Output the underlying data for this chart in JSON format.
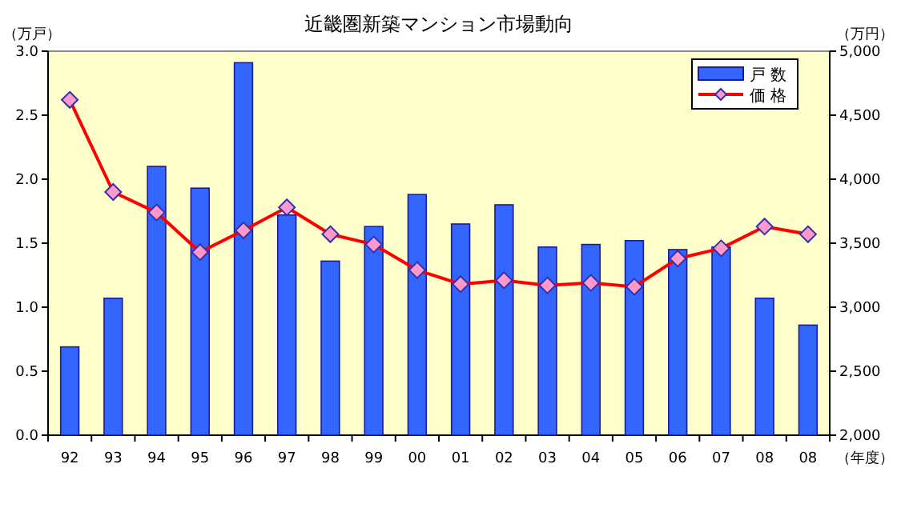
{
  "chart_data": {
    "type": "bar",
    "title": "近畿圏新築マンション市場動向",
    "categories": [
      "92",
      "93",
      "94",
      "95",
      "96",
      "97",
      "98",
      "99",
      "00",
      "01",
      "02",
      "03",
      "04",
      "05",
      "06",
      "07",
      "08",
      "08"
    ],
    "xlabel": "（年度）",
    "ylabel": "（万戸）",
    "y2label": "（万円）",
    "ylim": [
      0,
      3
    ],
    "yticks": [
      {
        "value": 0,
        "label": "0.0"
      },
      {
        "value": 0.5,
        "label": "0.5"
      },
      {
        "value": 1,
        "label": "1.0"
      },
      {
        "value": 1.5,
        "label": "1.5"
      },
      {
        "value": 2,
        "label": "2.0"
      },
      {
        "value": 2.5,
        "label": "2.5"
      },
      {
        "value": 3,
        "label": "3.0"
      }
    ],
    "y2lim": [
      2000,
      5000
    ],
    "y2ticks": [
      {
        "value": 2000,
        "label": "2,000"
      },
      {
        "value": 2500,
        "label": "2,500"
      },
      {
        "value": 3000,
        "label": "3,000"
      },
      {
        "value": 3500,
        "label": "3,500"
      },
      {
        "value": 4000,
        "label": "4,000"
      },
      {
        "value": 4500,
        "label": "4,500"
      },
      {
        "value": 5000,
        "label": "5,000"
      }
    ],
    "series": [
      {
        "name": "戸 数",
        "color": "#3366ff",
        "values": [
          0.69,
          1.07,
          2.1,
          1.93,
          2.91,
          1.72,
          1.36,
          1.63,
          1.88,
          1.65,
          1.8,
          1.47,
          1.49,
          1.52,
          1.45,
          1.47,
          1.07,
          0.86
        ]
      },
      {
        "name": "価 格",
        "type": "line",
        "axis": "y2",
        "color": "#ff0000",
        "values": [
          4620,
          3900,
          3740,
          3430,
          3600,
          3780,
          3570,
          3490,
          3290,
          3180,
          3210,
          3170,
          3190,
          3160,
          3380,
          3460,
          3630,
          3570
        ]
      }
    ],
    "marker": "diamond",
    "grid": false,
    "legend": "top right"
  }
}
